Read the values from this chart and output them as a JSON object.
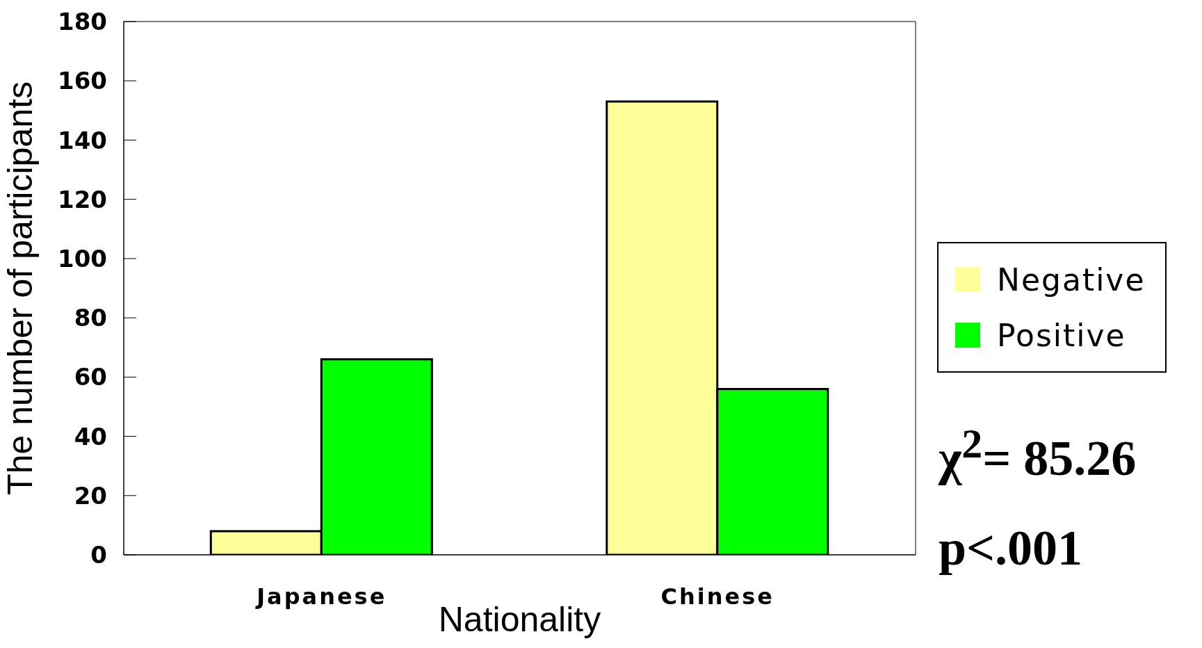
{
  "chart_data": {
    "type": "bar",
    "xlabel": "Nationality",
    "ylabel": "The number of participants",
    "categories": [
      "Japanese",
      "Chinese"
    ],
    "series": [
      {
        "name": "Negative",
        "color": "#ffff99",
        "values": [
          8,
          153
        ]
      },
      {
        "name": "Positive",
        "color": "#00ff00",
        "values": [
          66,
          56
        ]
      }
    ],
    "ylim": [
      0,
      180
    ],
    "yticks": [
      0,
      20,
      40,
      60,
      80,
      100,
      120,
      140,
      160,
      180
    ],
    "legend": "right",
    "annotations": [
      "χ$^{2}$= 85.26",
      "p<.001"
    ]
  }
}
